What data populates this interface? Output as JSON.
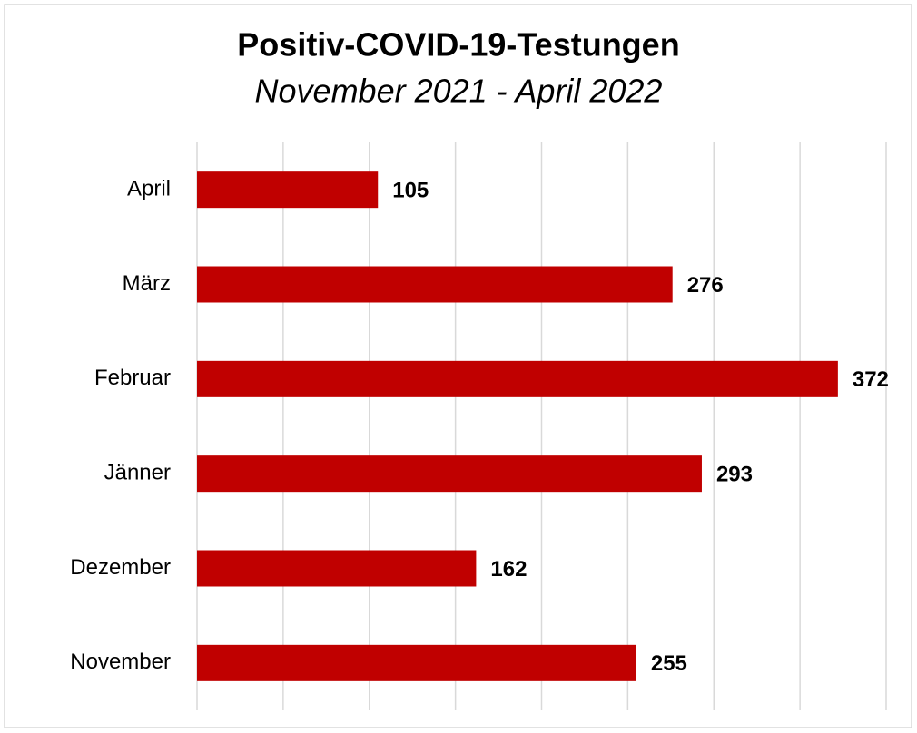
{
  "chart_data": {
    "type": "barh",
    "title": "Positiv-COVID-19-Testungen",
    "subtitle": "November 2021 - April 2022",
    "categories": [
      "November",
      "Dezember",
      "Jänner",
      "Februar",
      "März",
      "April"
    ],
    "values": [
      255,
      162,
      293,
      372,
      276,
      105
    ],
    "color": "#c00000",
    "xlim": [
      0,
      400
    ],
    "xticks": [
      0,
      50,
      100,
      150,
      200,
      250,
      300,
      350,
      400
    ],
    "grid": true
  }
}
